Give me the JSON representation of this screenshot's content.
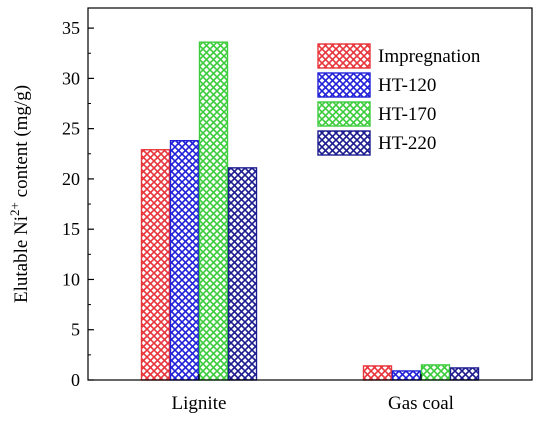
{
  "chart_data": {
    "type": "bar",
    "title": "",
    "xlabel": "",
    "ylabel": {
      "prefix": "Elutable Ni",
      "superscript": "2+",
      "suffix": " content (mg/g)"
    },
    "categories": [
      "Lignite",
      "Gas coal"
    ],
    "ylim": [
      0,
      37
    ],
    "yticks": [
      0,
      5,
      10,
      15,
      20,
      25,
      30,
      35
    ],
    "grid": false,
    "legend_position": "top-right",
    "fill_pattern": "crosshatch",
    "series": [
      {
        "name": "Impregnation",
        "values": [
          22.9,
          1.4
        ],
        "color": "#e8353b"
      },
      {
        "name": "HT-120",
        "values": [
          23.8,
          0.9
        ],
        "color": "#2020d8"
      },
      {
        "name": "HT-170",
        "values": [
          33.6,
          1.5
        ],
        "color": "#3ccc3c"
      },
      {
        "name": "HT-220",
        "values": [
          21.1,
          1.2
        ],
        "color": "#1c1c90"
      }
    ]
  }
}
